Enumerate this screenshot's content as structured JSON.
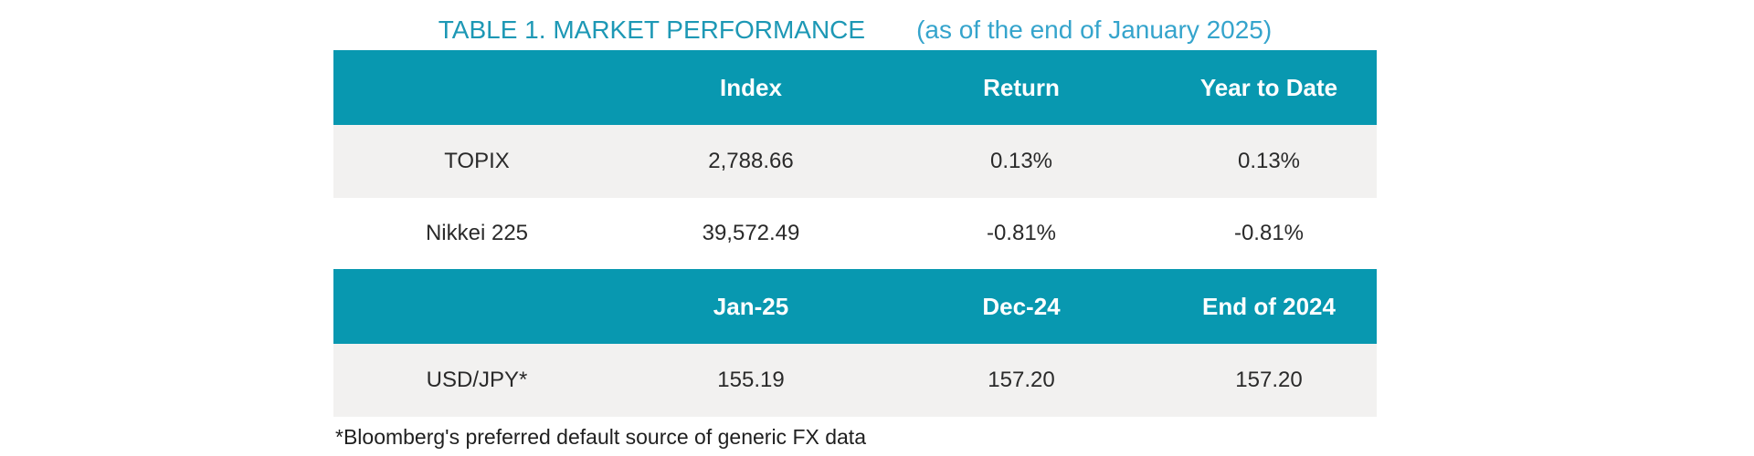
{
  "title": {
    "main": "TABLE 1. MARKET PERFORMANCE",
    "subtitle": "(as of the end of January 2025)"
  },
  "colors": {
    "header_bg": "#0898b0",
    "alt_row_bg": "#f2f1f0",
    "title_main": "#1d98b5",
    "title_subtitle": "#35a4cc",
    "header_text": "#ffffff",
    "body_text": "#2a2a2a"
  },
  "index_table": {
    "headers": {
      "label": "",
      "col1": "Index",
      "col2": "Return",
      "col3": "Year to Date"
    },
    "rows": [
      {
        "label": "TOPIX",
        "index": "2,788.66",
        "return": "0.13%",
        "ytd": "0.13%"
      },
      {
        "label": "Nikkei 225",
        "index": "39,572.49",
        "return": "-0.81%",
        "ytd": "-0.81%"
      }
    ]
  },
  "fx_table": {
    "headers": {
      "label": "",
      "col1": "Jan-25",
      "col2": "Dec-24",
      "col3": "End of 2024"
    },
    "rows": [
      {
        "label": "USD/JPY*",
        "jan25": "155.19",
        "dec24": "157.20",
        "end2024": "157.20"
      }
    ]
  },
  "footnote": "*Bloomberg's preferred default source of generic FX data"
}
